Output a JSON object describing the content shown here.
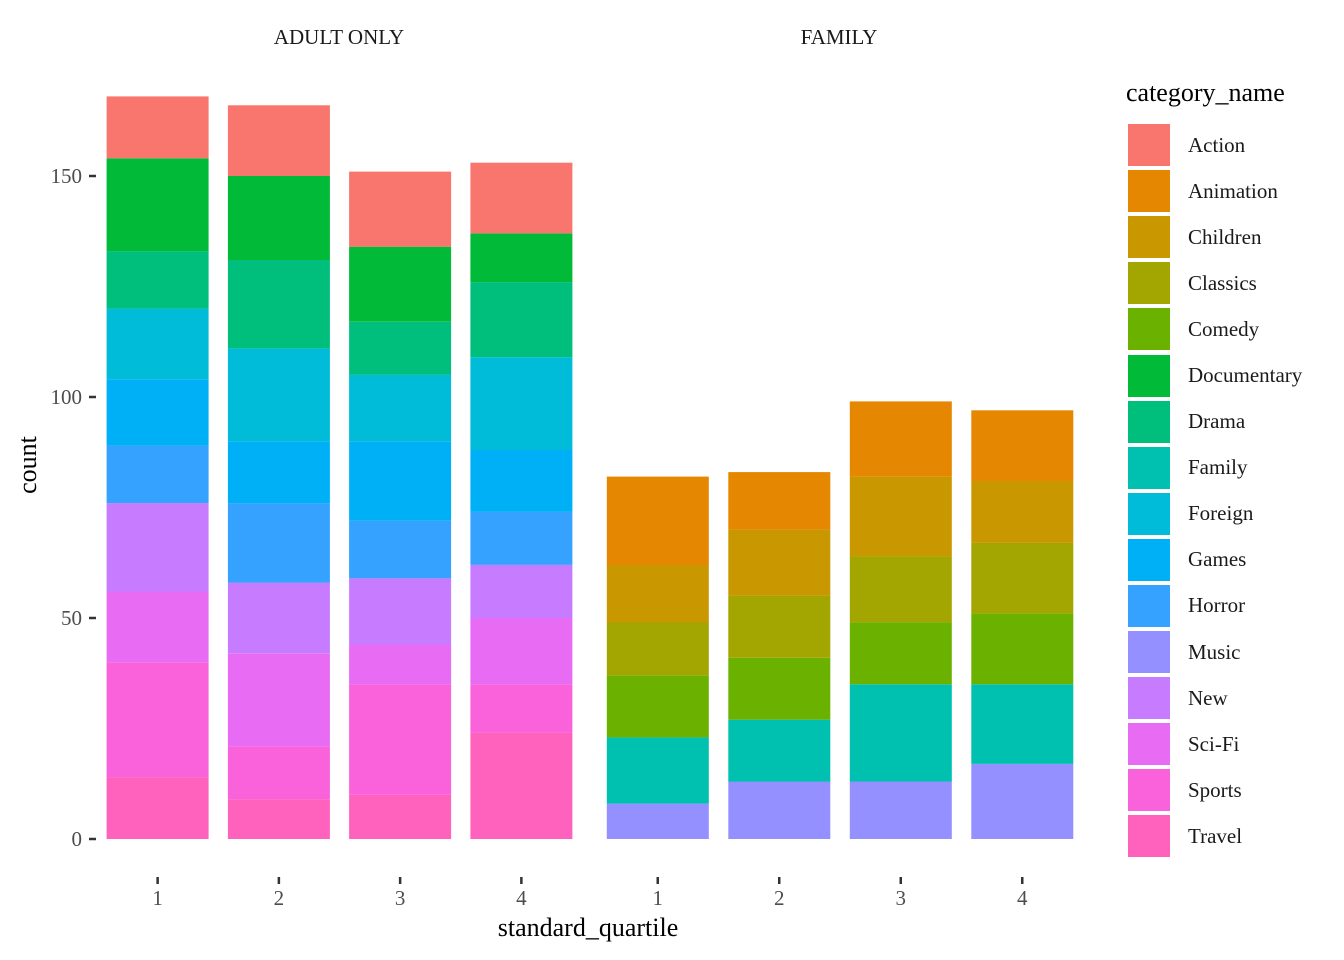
{
  "chart_data": {
    "type": "bar",
    "stacked": true,
    "facet_titles": [
      "ADULT ONLY",
      "FAMILY"
    ],
    "categories": [
      "1",
      "2",
      "3",
      "4"
    ],
    "xlabel": "standard_quartile",
    "ylabel": "count",
    "ylim": [
      0,
      170
    ],
    "yticks": [
      0,
      50,
      100,
      150
    ],
    "grid": false,
    "legend_position": "right",
    "legend_title": "category_name",
    "series": [
      {
        "name": "Action",
        "color": "#F8766D",
        "values": {
          "ADULT ONLY": [
            14,
            16,
            17,
            16
          ],
          "FAMILY": [
            0,
            0,
            0,
            0
          ]
        }
      },
      {
        "name": "Animation",
        "color": "#E58700",
        "values": {
          "ADULT ONLY": [
            0,
            0,
            0,
            0
          ],
          "FAMILY": [
            20,
            13,
            17,
            16
          ]
        }
      },
      {
        "name": "Children",
        "color": "#C99800",
        "values": {
          "ADULT ONLY": [
            0,
            0,
            0,
            0
          ],
          "FAMILY": [
            13,
            15,
            18,
            14
          ]
        }
      },
      {
        "name": "Classics",
        "color": "#A3A500",
        "values": {
          "ADULT ONLY": [
            0,
            0,
            0,
            0
          ],
          "FAMILY": [
            12,
            14,
            15,
            16
          ]
        }
      },
      {
        "name": "Comedy",
        "color": "#6BB100",
        "values": {
          "ADULT ONLY": [
            0,
            0,
            0,
            0
          ],
          "FAMILY": [
            14,
            14,
            14,
            16
          ]
        }
      },
      {
        "name": "Documentary",
        "color": "#00BA38",
        "values": {
          "ADULT ONLY": [
            21,
            19,
            17,
            11
          ],
          "FAMILY": [
            0,
            0,
            0,
            0
          ]
        }
      },
      {
        "name": "Drama",
        "color": "#00BF7D",
        "values": {
          "ADULT ONLY": [
            13,
            20,
            12,
            17
          ],
          "FAMILY": [
            0,
            0,
            0,
            0
          ]
        }
      },
      {
        "name": "Family",
        "color": "#00C0AF",
        "values": {
          "ADULT ONLY": [
            0,
            0,
            0,
            0
          ],
          "FAMILY": [
            15,
            14,
            22,
            18
          ]
        }
      },
      {
        "name": "Foreign",
        "color": "#00BCD8",
        "values": {
          "ADULT ONLY": [
            16,
            21,
            15,
            21
          ],
          "FAMILY": [
            0,
            0,
            0,
            0
          ]
        }
      },
      {
        "name": "Games",
        "color": "#00B0F6",
        "values": {
          "ADULT ONLY": [
            15,
            14,
            18,
            14
          ],
          "FAMILY": [
            0,
            0,
            0,
            0
          ]
        }
      },
      {
        "name": "Horror",
        "color": "#35A2FF",
        "values": {
          "ADULT ONLY": [
            13,
            18,
            13,
            12
          ],
          "FAMILY": [
            0,
            0,
            0,
            0
          ]
        }
      },
      {
        "name": "Music",
        "color": "#9590FF",
        "values": {
          "ADULT ONLY": [
            0,
            0,
            0,
            0
          ],
          "FAMILY": [
            8,
            13,
            13,
            17
          ]
        }
      },
      {
        "name": "New",
        "color": "#C77CFF",
        "values": {
          "ADULT ONLY": [
            20,
            16,
            15,
            12
          ],
          "FAMILY": [
            0,
            0,
            0,
            0
          ]
        }
      },
      {
        "name": "Sci-Fi",
        "color": "#E76BF3",
        "values": {
          "ADULT ONLY": [
            16,
            21,
            9,
            15
          ],
          "FAMILY": [
            0,
            0,
            0,
            0
          ]
        }
      },
      {
        "name": "Sports",
        "color": "#FA62DB",
        "values": {
          "ADULT ONLY": [
            26,
            12,
            25,
            11
          ],
          "FAMILY": [
            0,
            0,
            0,
            0
          ]
        }
      },
      {
        "name": "Travel",
        "color": "#FF62BC",
        "values": {
          "ADULT ONLY": [
            14,
            9,
            10,
            24
          ],
          "FAMILY": [
            0,
            0,
            0,
            0
          ]
        }
      }
    ]
  }
}
